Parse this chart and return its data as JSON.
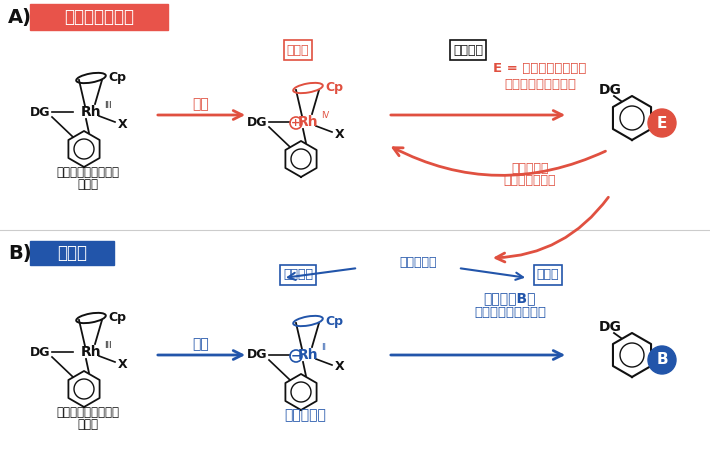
{
  "bg_color": "#ffffff",
  "section_A_label": "A)",
  "section_B_label": "B)",
  "header_A_text": "これまでの研究",
  "header_A_bg": "#e8534a",
  "header_A_text_color": "#ffffff",
  "header_B_text": "本研究",
  "header_B_bg": "#2255aa",
  "header_B_text_color": "#ffffff",
  "red": "#e05040",
  "blue": "#2255aa",
  "black": "#111111",
  "oxidation_label": "酸化",
  "reduction_label": "還元",
  "plus_label": "プラス",
  "minus_label": "マイナス",
  "E_formula": "E = 炭素・窒素・酸素",
  "E_sub": "（電気陰性な元素）",
  "boron_label": "ホウ素（B）",
  "boron_sub": "（電気陽性な元素）",
  "bad_affinity": "相性が悪い",
  "bad_affinity_sub": "（プラス同士）",
  "good_affinity": "相性が良い",
  "half_sandwich_label1": "ハーフサンドイッチ",
  "half_sandwich_label2": "型錯体",
  "ate_complex_label": "アート錯体",
  "Cp": "Cp",
  "DG": "DG",
  "X": "X",
  "Rh": "Rh",
  "III": "III",
  "IV": "IV",
  "II": "II"
}
